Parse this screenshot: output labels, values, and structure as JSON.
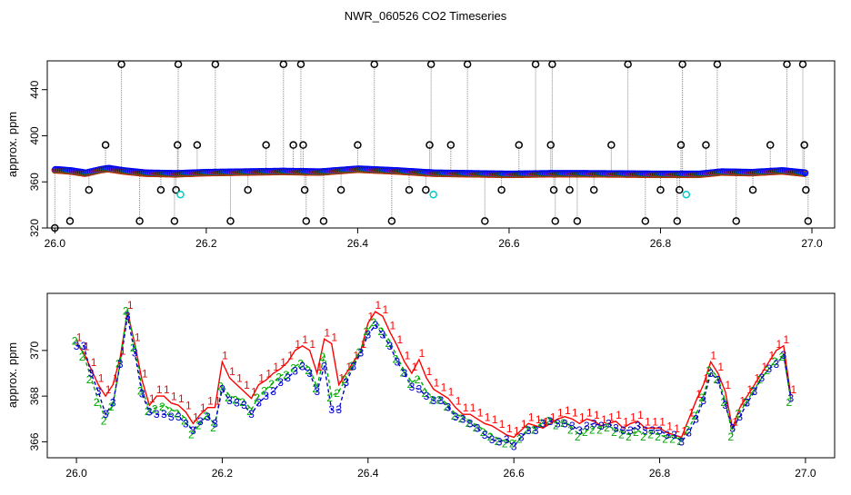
{
  "title": "NWR_060526  CO2 Timeseries",
  "chart_data": [
    {
      "type": "scatter",
      "panel": "top",
      "title": "NWR_060526  CO2 Timeseries",
      "xlabel": "",
      "ylabel": "approx. ppm",
      "xlim": [
        25.99,
        27.03
      ],
      "ylim": [
        320,
        465
      ],
      "x_ticks": [
        26.0,
        26.2,
        26.4,
        26.6,
        26.8,
        27.0
      ],
      "x_tick_labels": [
        "26.0",
        "26.2",
        "26.4",
        "26.6",
        "26.8",
        "27.0"
      ],
      "y_ticks": [
        320,
        360,
        400,
        440
      ],
      "y_tick_labels": [
        "320",
        "360",
        "400",
        "440"
      ],
      "grid": false,
      "legend": "none",
      "colors": {
        "series1": "#ff0000",
        "series2": "#00aa00",
        "series3": "#0000ff",
        "flagged": "#000000",
        "cyan": "#00cccc",
        "spike_line": "#888888"
      },
      "baseline_series": [
        {
          "x": 26.0,
          "y": 370.5
        },
        {
          "x": 26.02,
          "y": 369.5
        },
        {
          "x": 26.04,
          "y": 367.5
        },
        {
          "x": 26.06,
          "y": 370.5
        },
        {
          "x": 26.07,
          "y": 371.5
        },
        {
          "x": 26.09,
          "y": 369.5
        },
        {
          "x": 26.12,
          "y": 367.5
        },
        {
          "x": 26.16,
          "y": 367.0
        },
        {
          "x": 26.2,
          "y": 368.0
        },
        {
          "x": 26.25,
          "y": 368.5
        },
        {
          "x": 26.3,
          "y": 369.0
        },
        {
          "x": 26.35,
          "y": 368.5
        },
        {
          "x": 26.4,
          "y": 371.0
        },
        {
          "x": 26.45,
          "y": 369.5
        },
        {
          "x": 26.5,
          "y": 367.5
        },
        {
          "x": 26.55,
          "y": 367.0
        },
        {
          "x": 26.6,
          "y": 366.5
        },
        {
          "x": 26.65,
          "y": 367.0
        },
        {
          "x": 26.7,
          "y": 367.0
        },
        {
          "x": 26.75,
          "y": 366.8
        },
        {
          "x": 26.8,
          "y": 366.5
        },
        {
          "x": 26.85,
          "y": 366.5
        },
        {
          "x": 26.88,
          "y": 368.5
        },
        {
          "x": 26.92,
          "y": 368.0
        },
        {
          "x": 26.96,
          "y": 369.5
        },
        {
          "x": 26.99,
          "y": 367.5
        }
      ],
      "flagged_points": [
        {
          "x": 26.0,
          "y": 320
        },
        {
          "x": 26.02,
          "y": 326
        },
        {
          "x": 26.045,
          "y": 353
        },
        {
          "x": 26.067,
          "y": 392
        },
        {
          "x": 26.088,
          "y": 462
        },
        {
          "x": 26.112,
          "y": 326
        },
        {
          "x": 26.14,
          "y": 353
        },
        {
          "x": 26.158,
          "y": 326
        },
        {
          "x": 26.16,
          "y": 353
        },
        {
          "x": 26.162,
          "y": 392
        },
        {
          "x": 26.163,
          "y": 462
        },
        {
          "x": 26.188,
          "y": 392
        },
        {
          "x": 26.212,
          "y": 462
        },
        {
          "x": 26.232,
          "y": 326
        },
        {
          "x": 26.255,
          "y": 353
        },
        {
          "x": 26.279,
          "y": 392
        },
        {
          "x": 26.302,
          "y": 462
        },
        {
          "x": 26.315,
          "y": 392
        },
        {
          "x": 26.325,
          "y": 462
        },
        {
          "x": 26.328,
          "y": 392
        },
        {
          "x": 26.33,
          "y": 353
        },
        {
          "x": 26.332,
          "y": 326
        },
        {
          "x": 26.355,
          "y": 326
        },
        {
          "x": 26.378,
          "y": 353
        },
        {
          "x": 26.4,
          "y": 392
        },
        {
          "x": 26.422,
          "y": 462
        },
        {
          "x": 26.445,
          "y": 326
        },
        {
          "x": 26.468,
          "y": 353
        },
        {
          "x": 26.49,
          "y": 353
        },
        {
          "x": 26.495,
          "y": 392
        },
        {
          "x": 26.497,
          "y": 462
        },
        {
          "x": 26.523,
          "y": 392
        },
        {
          "x": 26.545,
          "y": 462
        },
        {
          "x": 26.568,
          "y": 326
        },
        {
          "x": 26.59,
          "y": 353
        },
        {
          "x": 26.613,
          "y": 392
        },
        {
          "x": 26.635,
          "y": 462
        },
        {
          "x": 26.655,
          "y": 392
        },
        {
          "x": 26.657,
          "y": 462
        },
        {
          "x": 26.659,
          "y": 353
        },
        {
          "x": 26.661,
          "y": 326
        },
        {
          "x": 26.68,
          "y": 353
        },
        {
          "x": 26.69,
          "y": 326
        },
        {
          "x": 26.712,
          "y": 353
        },
        {
          "x": 26.735,
          "y": 392
        },
        {
          "x": 26.757,
          "y": 462
        },
        {
          "x": 26.78,
          "y": 326
        },
        {
          "x": 26.8,
          "y": 353
        },
        {
          "x": 26.822,
          "y": 326
        },
        {
          "x": 26.825,
          "y": 353
        },
        {
          "x": 26.827,
          "y": 392
        },
        {
          "x": 26.829,
          "y": 462
        },
        {
          "x": 26.86,
          "y": 392
        },
        {
          "x": 26.875,
          "y": 462
        },
        {
          "x": 26.9,
          "y": 326
        },
        {
          "x": 26.922,
          "y": 353
        },
        {
          "x": 26.945,
          "y": 392
        },
        {
          "x": 26.967,
          "y": 462
        },
        {
          "x": 26.988,
          "y": 462
        },
        {
          "x": 26.99,
          "y": 392
        },
        {
          "x": 26.992,
          "y": 353
        },
        {
          "x": 26.995,
          "y": 326
        }
      ],
      "cyan_points": [
        {
          "x": 26.166,
          "y": 349
        },
        {
          "x": 26.5,
          "y": 349
        },
        {
          "x": 26.834,
          "y": 349
        }
      ]
    },
    {
      "type": "line",
      "panel": "bottom",
      "xlabel": "",
      "ylabel": "approx. ppm",
      "xlim": [
        25.96,
        27.04
      ],
      "ylim": [
        365.3,
        372.5
      ],
      "x_ticks": [
        26.0,
        26.2,
        26.4,
        26.6,
        26.8,
        27.0
      ],
      "x_tick_labels": [
        "26.0",
        "26.2",
        "26.4",
        "26.6",
        "26.8",
        "27.0"
      ],
      "y_ticks": [
        366,
        368,
        370
      ],
      "y_tick_labels": [
        "366",
        "368",
        "370"
      ],
      "grid": false,
      "legend": "none",
      "series": [
        {
          "name": "1",
          "color": "#ff0000",
          "x": [
            26.0,
            26.01,
            26.02,
            26.03,
            26.04,
            26.05,
            26.06,
            26.07,
            26.08,
            26.09,
            26.1,
            26.11,
            26.12,
            26.13,
            26.14,
            26.15,
            26.16,
            26.17,
            26.18,
            26.19,
            26.2,
            26.21,
            26.22,
            26.23,
            26.24,
            26.25,
            26.26,
            26.27,
            26.28,
            26.29,
            26.3,
            26.31,
            26.32,
            26.33,
            26.34,
            26.35,
            26.36,
            26.37,
            26.38,
            26.39,
            26.4,
            26.41,
            26.42,
            26.43,
            26.44,
            26.45,
            26.46,
            26.47,
            26.48,
            26.49,
            26.5,
            26.51,
            26.52,
            26.53,
            26.54,
            26.55,
            26.56,
            26.57,
            26.58,
            26.59,
            26.6,
            26.61,
            26.62,
            26.63,
            26.64,
            26.65,
            26.66,
            26.67,
            26.68,
            26.69,
            26.7,
            26.71,
            26.72,
            26.73,
            26.74,
            26.75,
            26.76,
            26.77,
            26.78,
            26.79,
            26.8,
            26.81,
            26.82,
            26.83,
            26.84,
            26.85,
            26.86,
            26.87,
            26.88,
            26.89,
            26.9,
            26.91,
            26.92,
            26.93,
            26.94,
            26.95,
            26.96,
            26.97,
            26.98
          ],
          "y": [
            370.3,
            369.9,
            369.2,
            368.5,
            368.0,
            368.5,
            369.7,
            371.7,
            370.3,
            368.7,
            367.6,
            368.0,
            368.0,
            367.7,
            367.6,
            367.3,
            366.8,
            367.2,
            367.5,
            367.5,
            369.5,
            368.8,
            368.5,
            368.2,
            367.9,
            368.5,
            368.7,
            369.0,
            369.2,
            369.5,
            370.0,
            370.2,
            370.0,
            369.0,
            370.5,
            370.3,
            368.5,
            369.0,
            369.5,
            370.0,
            371.2,
            371.7,
            371.5,
            370.8,
            370.2,
            369.5,
            369.0,
            369.6,
            368.8,
            368.3,
            368.1,
            367.9,
            367.5,
            367.2,
            367.2,
            367.0,
            366.8,
            366.7,
            366.5,
            366.3,
            366.2,
            366.5,
            366.8,
            366.7,
            366.6,
            366.8,
            367.0,
            367.1,
            367.0,
            366.8,
            367.0,
            366.9,
            366.7,
            366.8,
            366.9,
            366.6,
            366.8,
            366.9,
            366.6,
            366.6,
            366.6,
            366.4,
            366.3,
            366.2,
            367.0,
            367.8,
            368.5,
            369.5,
            369.0,
            368.2,
            366.6,
            367.5,
            368.0,
            368.5,
            369.0,
            369.5,
            370.0,
            370.2,
            368.0
          ]
        },
        {
          "name": "2",
          "color": "#00aa00",
          "x": [
            26.0,
            26.01,
            26.02,
            26.03,
            26.04,
            26.05,
            26.06,
            26.07,
            26.08,
            26.09,
            26.1,
            26.11,
            26.12,
            26.13,
            26.14,
            26.15,
            26.16,
            26.17,
            26.18,
            26.19,
            26.2,
            26.21,
            26.22,
            26.23,
            26.24,
            26.25,
            26.26,
            26.27,
            26.28,
            26.29,
            26.3,
            26.31,
            26.32,
            26.33,
            26.34,
            26.35,
            26.36,
            26.37,
            26.38,
            26.39,
            26.4,
            26.41,
            26.42,
            26.43,
            26.44,
            26.45,
            26.46,
            26.47,
            26.48,
            26.49,
            26.5,
            26.51,
            26.52,
            26.53,
            26.54,
            26.55,
            26.56,
            26.57,
            26.58,
            26.59,
            26.6,
            26.61,
            26.62,
            26.63,
            26.64,
            26.65,
            26.66,
            26.67,
            26.68,
            26.69,
            26.7,
            26.71,
            26.72,
            26.73,
            26.74,
            26.75,
            26.76,
            26.77,
            26.78,
            26.79,
            26.8,
            26.81,
            26.82,
            26.83,
            26.84,
            26.85,
            26.86,
            26.87,
            26.88,
            26.89,
            26.9,
            26.91,
            26.92,
            26.93,
            26.94,
            26.95,
            26.96,
            26.97,
            26.98
          ],
          "y": [
            370.5,
            369.8,
            368.8,
            367.8,
            367.0,
            367.6,
            369.5,
            371.8,
            370.2,
            368.3,
            367.4,
            367.5,
            367.6,
            367.4,
            367.3,
            367.0,
            366.4,
            366.8,
            367.2,
            366.7,
            368.5,
            368.0,
            367.9,
            367.8,
            367.4,
            368.0,
            368.3,
            368.6,
            368.9,
            369.0,
            369.3,
            369.5,
            369.2,
            368.4,
            369.8,
            368.0,
            368.2,
            368.8,
            369.4,
            370.0,
            370.9,
            371.3,
            370.9,
            370.4,
            369.7,
            369.1,
            368.6,
            368.8,
            368.2,
            367.9,
            367.9,
            367.6,
            367.2,
            367.1,
            366.9,
            366.7,
            366.5,
            366.3,
            366.1,
            366.0,
            366.0,
            366.2,
            366.6,
            366.6,
            366.9,
            367.0,
            366.8,
            366.9,
            366.6,
            366.3,
            366.5,
            366.6,
            366.6,
            366.7,
            366.5,
            366.4,
            366.3,
            366.5,
            366.3,
            366.4,
            366.3,
            366.2,
            366.2,
            366.1,
            366.6,
            367.2,
            368.0,
            369.2,
            368.8,
            367.8,
            366.3,
            367.3,
            367.8,
            368.3,
            368.8,
            369.2,
            369.6,
            369.8,
            367.8
          ]
        },
        {
          "name": "3",
          "color": "#0000cc",
          "x": [
            26.0,
            26.01,
            26.02,
            26.03,
            26.04,
            26.05,
            26.06,
            26.07,
            26.08,
            26.09,
            26.1,
            26.11,
            26.12,
            26.13,
            26.14,
            26.15,
            26.16,
            26.17,
            26.18,
            26.19,
            26.2,
            26.21,
            26.22,
            26.23,
            26.24,
            26.25,
            26.26,
            26.27,
            26.28,
            26.29,
            26.3,
            26.31,
            26.32,
            26.33,
            26.34,
            26.35,
            26.36,
            26.37,
            26.38,
            26.39,
            26.4,
            26.41,
            26.42,
            26.43,
            26.44,
            26.45,
            26.46,
            26.47,
            26.48,
            26.49,
            26.5,
            26.51,
            26.52,
            26.53,
            26.54,
            26.55,
            26.56,
            26.57,
            26.58,
            26.59,
            26.6,
            26.61,
            26.62,
            26.63,
            26.64,
            26.65,
            26.66,
            26.67,
            26.68,
            26.69,
            26.7,
            26.71,
            26.72,
            26.73,
            26.74,
            26.75,
            26.76,
            26.77,
            26.78,
            26.79,
            26.8,
            26.81,
            26.82,
            26.83,
            26.84,
            26.85,
            26.86,
            26.87,
            26.88,
            26.89,
            26.9,
            26.91,
            26.92,
            26.93,
            26.94,
            26.95,
            26.96,
            26.97,
            26.98
          ],
          "y": [
            370.2,
            370.2,
            369.0,
            368.2,
            367.2,
            367.7,
            369.4,
            371.5,
            369.9,
            368.1,
            367.3,
            367.2,
            367.2,
            367.1,
            367.1,
            366.8,
            366.5,
            366.9,
            367.1,
            366.8,
            368.3,
            367.8,
            367.7,
            367.6,
            367.2,
            367.7,
            368.0,
            368.2,
            368.6,
            368.8,
            369.1,
            369.3,
            369.0,
            368.2,
            369.3,
            367.4,
            367.4,
            368.6,
            369.3,
            369.9,
            370.7,
            371.1,
            370.7,
            370.2,
            369.5,
            369.0,
            368.4,
            368.3,
            368.0,
            367.8,
            367.8,
            367.5,
            367.1,
            367.0,
            366.8,
            366.6,
            366.3,
            366.1,
            366.0,
            366.1,
            365.8,
            366.2,
            366.5,
            366.5,
            366.8,
            366.9,
            366.8,
            366.8,
            366.7,
            366.5,
            366.7,
            366.8,
            366.7,
            366.8,
            366.6,
            366.5,
            366.5,
            366.7,
            366.5,
            366.5,
            366.5,
            366.3,
            366.3,
            366.0,
            366.4,
            367.0,
            367.8,
            369.0,
            368.7,
            367.6,
            366.6,
            367.1,
            367.7,
            368.2,
            368.8,
            369.2,
            369.4,
            369.8,
            367.9
          ]
        }
      ]
    }
  ]
}
